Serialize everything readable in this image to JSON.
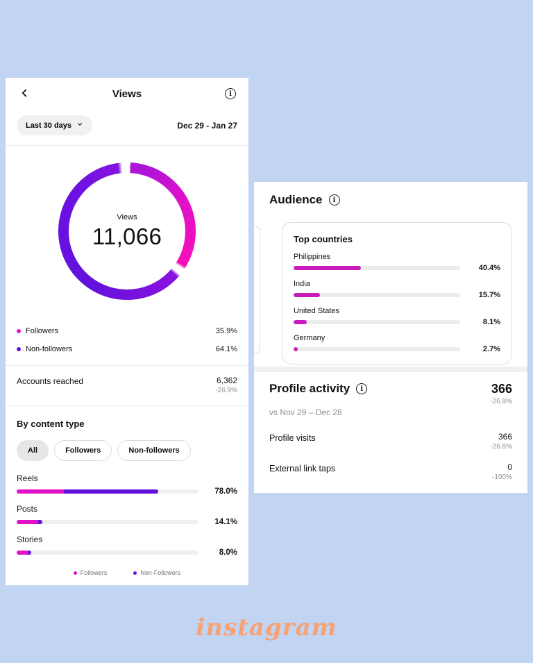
{
  "colors": {
    "background": "#c1d4f1",
    "followers": "#e011c8",
    "non_followers": "#6211dd",
    "country_bar": "#c71bbb"
  },
  "icons": {
    "info_glyph": "i"
  },
  "watermark": "instagram",
  "views_panel": {
    "header": {
      "title": "Views"
    },
    "filter": {
      "period_label": "Last 30 days",
      "date_range": "Dec 29 - Jan 27"
    },
    "donut": {
      "center_label": "Views",
      "center_value": "11,066",
      "segments": [
        {
          "name": "Followers",
          "pct": 35.9,
          "color": "#e011c8"
        },
        {
          "name": "Non-followers",
          "pct": 64.1,
          "color": "#6211dd"
        }
      ]
    },
    "legend": [
      {
        "label": "Followers",
        "value": "35.9%"
      },
      {
        "label": "Non-followers",
        "value": "64.1%"
      }
    ],
    "accounts_reached": {
      "label": "Accounts reached",
      "value": "6,362",
      "delta": "-26.9%"
    },
    "by_content_type": {
      "title": "By content type",
      "filters": [
        {
          "label": "All",
          "selected": true
        },
        {
          "label": "Followers",
          "selected": false
        },
        {
          "label": "Non-followers",
          "selected": false
        }
      ],
      "bars": [
        {
          "label": "Reels",
          "value": "78.0%",
          "followers_pct": 26,
          "non_followers_pct": 52
        },
        {
          "label": "Posts",
          "value": "14.1%",
          "followers_pct": 12,
          "non_followers_pct": 2.1
        },
        {
          "label": "Stories",
          "value": "8.0%",
          "followers_pct": 6,
          "non_followers_pct": 2
        }
      ],
      "legend": [
        {
          "label": "Followers"
        },
        {
          "label": "Non-Followers"
        }
      ]
    }
  },
  "audience_panel": {
    "title": "Audience",
    "top_countries": {
      "title": "Top countries",
      "rows": [
        {
          "label": "Philippines",
          "value": "40.4%",
          "pct": 40.4
        },
        {
          "label": "India",
          "value": "15.7%",
          "pct": 15.7
        },
        {
          "label": "United States",
          "value": "8.1%",
          "pct": 8.1
        },
        {
          "label": "Germany",
          "value": "2.7%",
          "pct": 2.7
        }
      ]
    }
  },
  "profile_activity_panel": {
    "title": "Profile activity",
    "total": "366",
    "total_delta": "-26.9%",
    "compare_label": "vs Nov 29 – Dec 28",
    "rows": [
      {
        "label": "Profile visits",
        "value": "366",
        "delta": "-26.8%"
      },
      {
        "label": "External link taps",
        "value": "0",
        "delta": "-100%"
      }
    ]
  }
}
